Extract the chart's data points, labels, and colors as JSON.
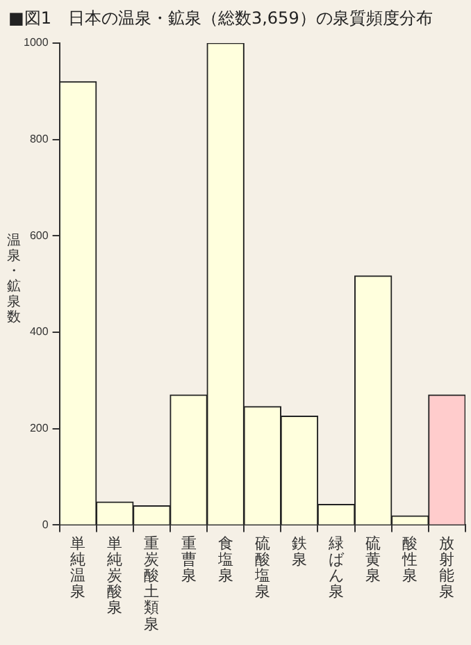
{
  "chart_data": {
    "type": "bar",
    "title": "■図1　日本の温泉・鉱泉（総数3,659）の泉質頻度分布",
    "ylabel": "温泉・鉱泉数",
    "categories": [
      "単純温泉",
      "単純炭酸泉",
      "重炭酸土類泉",
      "重曹泉",
      "食塩泉",
      "硫酸塩泉",
      "鉄泉",
      "緑ばん泉",
      "硫黄泉",
      "酸性泉",
      "放射能泉"
    ],
    "values": [
      920,
      48,
      40,
      270,
      1000,
      246,
      226,
      43,
      517,
      19,
      270
    ],
    "colors": [
      "#ffffdd",
      "#ffffdd",
      "#ffffdd",
      "#ffffdd",
      "#ffffdd",
      "#ffffdd",
      "#ffffdd",
      "#ffffdd",
      "#ffffdd",
      "#ffffdd",
      "#ffcccc"
    ],
    "ylim": [
      0,
      1000
    ],
    "yticks": [
      0,
      200,
      400,
      600,
      800,
      1000
    ]
  }
}
